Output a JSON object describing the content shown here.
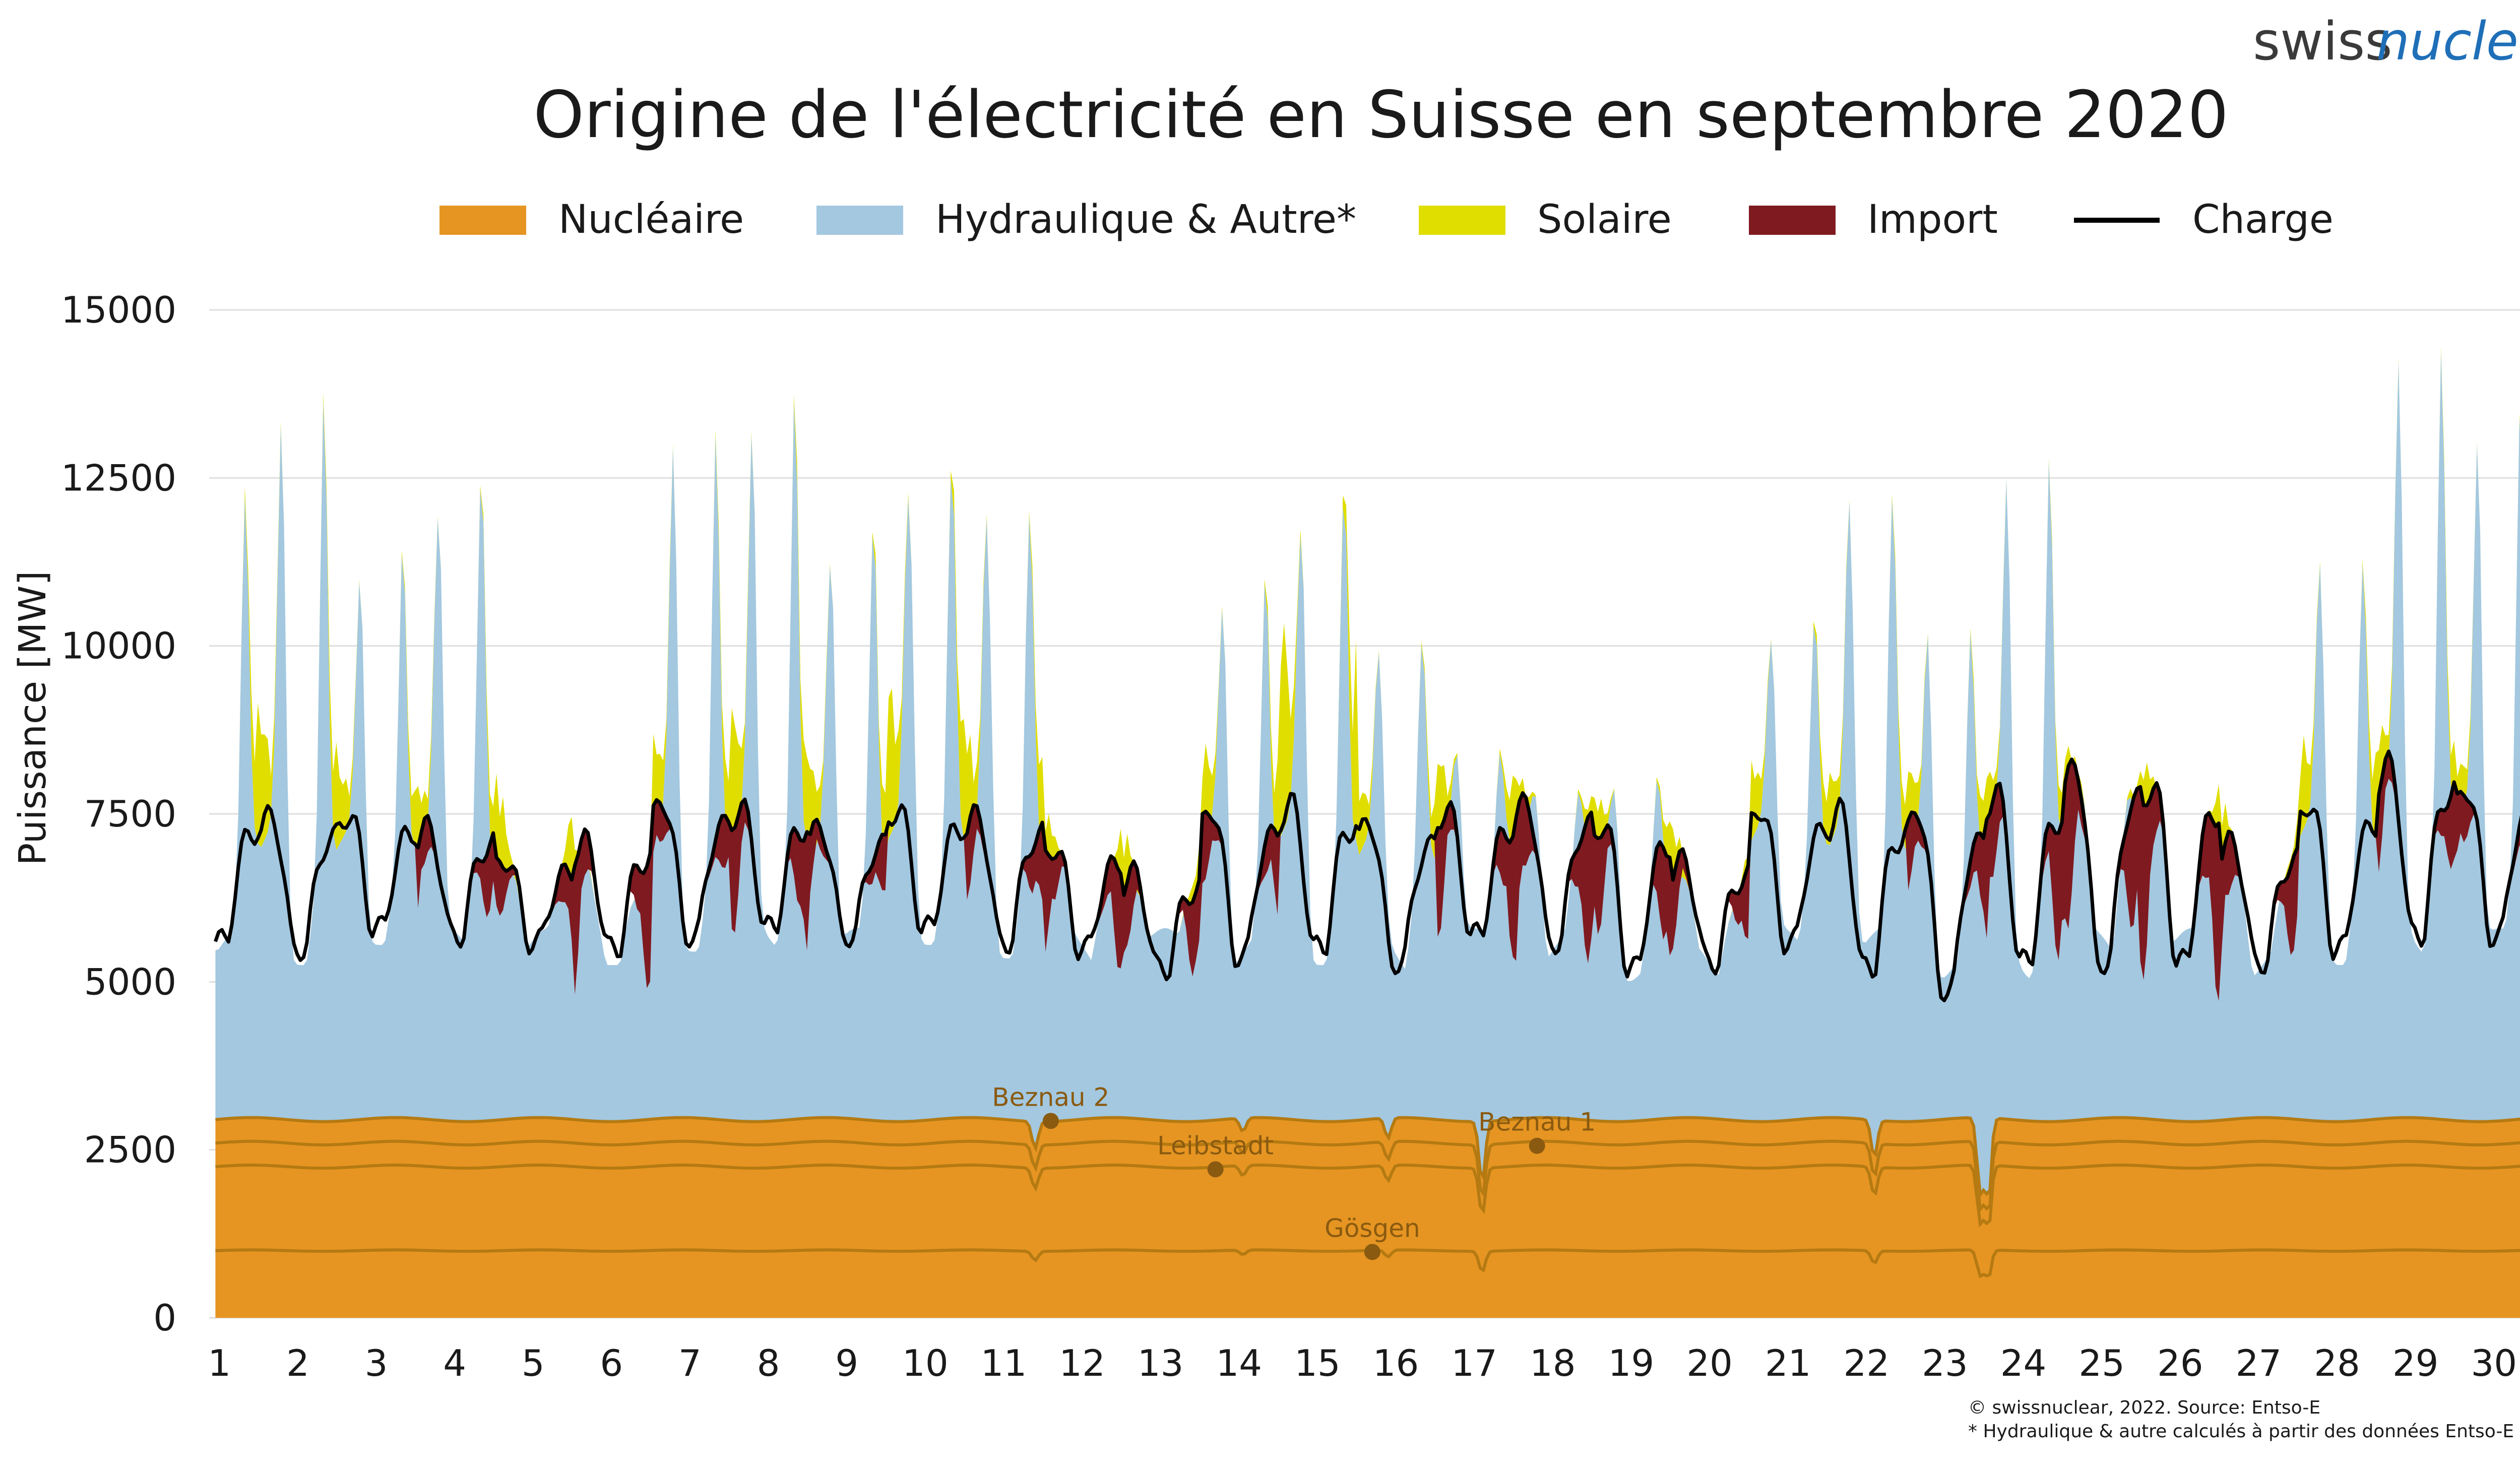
{
  "header": {
    "logo_part1": "swiss",
    "logo_part2": "nuclear"
  },
  "footer": {
    "copyright": "© swissnuclear, 2022. Source: Entso-E",
    "note": "* Hydraulique & autre calculés à partir des données Entso-E"
  },
  "chart_data": {
    "type": "area",
    "title": "Origine de l'électricité en Suisse en septembre 2020",
    "xlabel": "",
    "ylabel": "Puissance [MW]",
    "ylim": [
      0,
      15000
    ],
    "yticks": [
      0,
      2500,
      5000,
      7500,
      10000,
      12500,
      15000
    ],
    "x_ticks": [
      "1",
      "2",
      "3",
      "4",
      "5",
      "6",
      "7",
      "8",
      "9",
      "10",
      "11",
      "12",
      "13",
      "14",
      "15",
      "16",
      "17",
      "18",
      "19",
      "20",
      "21",
      "22",
      "23",
      "24",
      "25",
      "26",
      "27",
      "28",
      "29",
      "30"
    ],
    "xlim_days": [
      0.87,
      30.75
    ],
    "grid": true,
    "legend_position": "top",
    "stacking": [
      "Nucléaire",
      "Hydraulique & Autre*",
      "Solaire",
      "Import"
    ],
    "series": [
      {
        "name": "Nucléaire",
        "color": "#e69522",
        "kind": "stacked-area",
        "values_note": "approx. constant total",
        "approx_total_mw": 2950
      },
      {
        "name": "Hydraulique & Autre*",
        "color": "#a3c8e0",
        "kind": "stacked-area"
      },
      {
        "name": "Solaire",
        "color": "#e0de00",
        "kind": "stacked-area"
      },
      {
        "name": "Import",
        "color": "#7f1a20",
        "kind": "stacked-area"
      },
      {
        "name": "Charge",
        "color": "#000000",
        "kind": "line"
      }
    ],
    "daily_peak_total_mw": [
      13300,
      14300,
      11800,
      13800,
      7500,
      6400,
      13500,
      14200,
      12700,
      14500,
      13500,
      7300,
      7000,
      11500,
      14100,
      11200,
      8800,
      7800,
      8300,
      6800,
      11300,
      13700,
      10900,
      12700,
      7300,
      7200,
      7000,
      12200,
      14300,
      13300
    ],
    "daily_charge_max_mw": [
      7700,
      7600,
      7600,
      7400,
      6900,
      7200,
      7800,
      7700,
      7400,
      7700,
      7600,
      7100,
      6700,
      7700,
      7800,
      7500,
      7700,
      7800,
      7500,
      6900,
      7700,
      7700,
      7700,
      8000,
      8400,
      8100,
      7200,
      7800,
      8400,
      8000
    ],
    "daily_charge_min_mw": [
      5600,
      5500,
      5800,
      5700,
      5600,
      5500,
      5700,
      5800,
      5700,
      5800,
      5600,
      5500,
      5200,
      5400,
      5500,
      5300,
      5700,
      5600,
      5200,
      5300,
      5600,
      5200,
      4900,
      5300,
      5300,
      5300,
      5300,
      5500,
      5700,
      5700
    ],
    "daily_import_peak_mw": [
      6000,
      6000,
      6000,
      6500,
      6300,
      7300,
      6300,
      7200,
      6200,
      6000,
      6500,
      6900,
      6800,
      6500,
      6000,
      6000,
      7100,
      7700,
      7300,
      6400,
      6000,
      6000,
      6400,
      7500,
      8400,
      8000,
      7000,
      6000,
      6500,
      6500
    ],
    "daily_solar_extra_mw": [
      2500,
      2000,
      1100,
      1100,
      1700,
      300,
      1500,
      2000,
      1400,
      2400,
      1700,
      900,
      1000,
      1500,
      3500,
      1000,
      1300,
      900,
      900,
      900,
      1200,
      1100,
      1200,
      800,
      800,
      800,
      1000,
      1500,
      1100,
      900
    ],
    "nuclear_plants": [
      {
        "name": "Gösgen",
        "approx_mw": 1000
      },
      {
        "name": "Leibstadt",
        "approx_mw": 1250
      },
      {
        "name": "Beznau 1",
        "approx_mw": 350
      },
      {
        "name": "Beznau 2",
        "approx_mw": 350
      }
    ],
    "annotations": [
      "Beznau 2",
      "Leibstadt",
      "Beznau 1",
      "Gösgen"
    ]
  }
}
